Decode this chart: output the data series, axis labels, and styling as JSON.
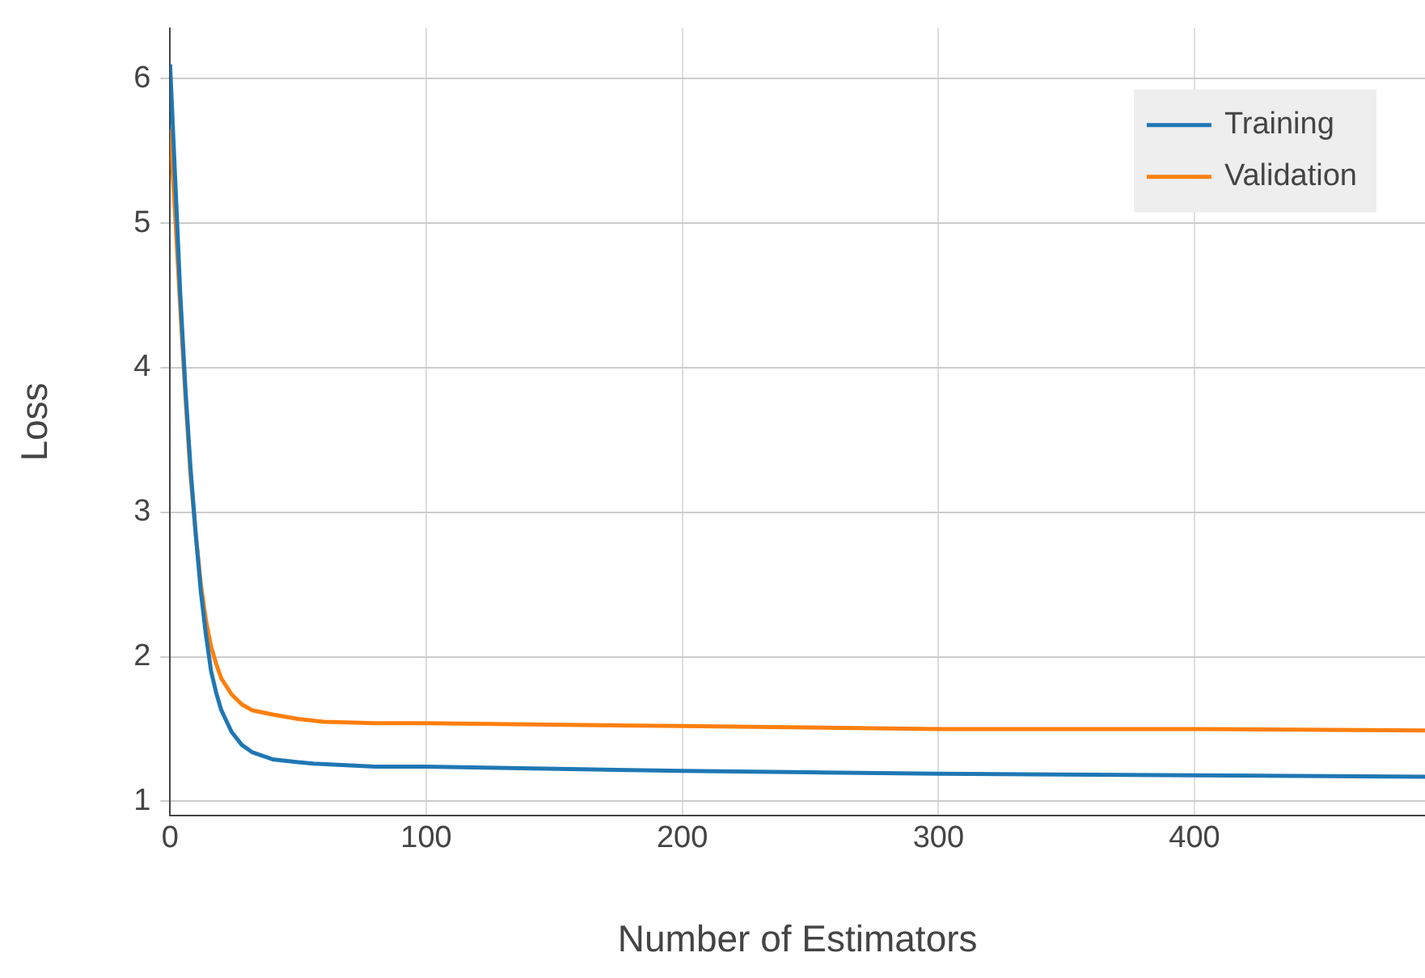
{
  "chart_data": {
    "type": "line",
    "xlabel": "Number of Estimators",
    "ylabel": "Loss",
    "xlim": [
      0,
      490
    ],
    "xticks": [
      0,
      100,
      200,
      300,
      400
    ],
    "ylim": [
      0.9,
      6.35
    ],
    "yticks": [
      1,
      2,
      3,
      4,
      5,
      6
    ],
    "grid": true,
    "legend": "top right",
    "marker": "none",
    "line_style": "solid",
    "series": [
      {
        "name": "Training",
        "color": "#1f77b4",
        "x": [
          0,
          2,
          4,
          6,
          8,
          10,
          12,
          14,
          16,
          18,
          20,
          24,
          28,
          32,
          40,
          50,
          56,
          80,
          100,
          200,
          250,
          300,
          400,
          490
        ],
        "values": [
          6.1,
          5.3,
          4.5,
          3.85,
          3.3,
          2.85,
          2.45,
          2.15,
          1.9,
          1.75,
          1.63,
          1.48,
          1.39,
          1.34,
          1.29,
          1.27,
          1.26,
          1.24,
          1.24,
          1.21,
          1.2,
          1.19,
          1.18,
          1.17
        ]
      },
      {
        "name": "Validation",
        "color": "#ff7f0e",
        "x": [
          0,
          2,
          4,
          6,
          8,
          10,
          12,
          14,
          16,
          18,
          20,
          24,
          28,
          32,
          40,
          50,
          60,
          80,
          100,
          200,
          300,
          400,
          490
        ],
        "values": [
          5.65,
          5.05,
          4.4,
          3.8,
          3.25,
          2.85,
          2.5,
          2.25,
          2.07,
          1.95,
          1.85,
          1.74,
          1.67,
          1.63,
          1.6,
          1.57,
          1.55,
          1.54,
          1.54,
          1.52,
          1.5,
          1.5,
          1.49
        ]
      }
    ]
  }
}
